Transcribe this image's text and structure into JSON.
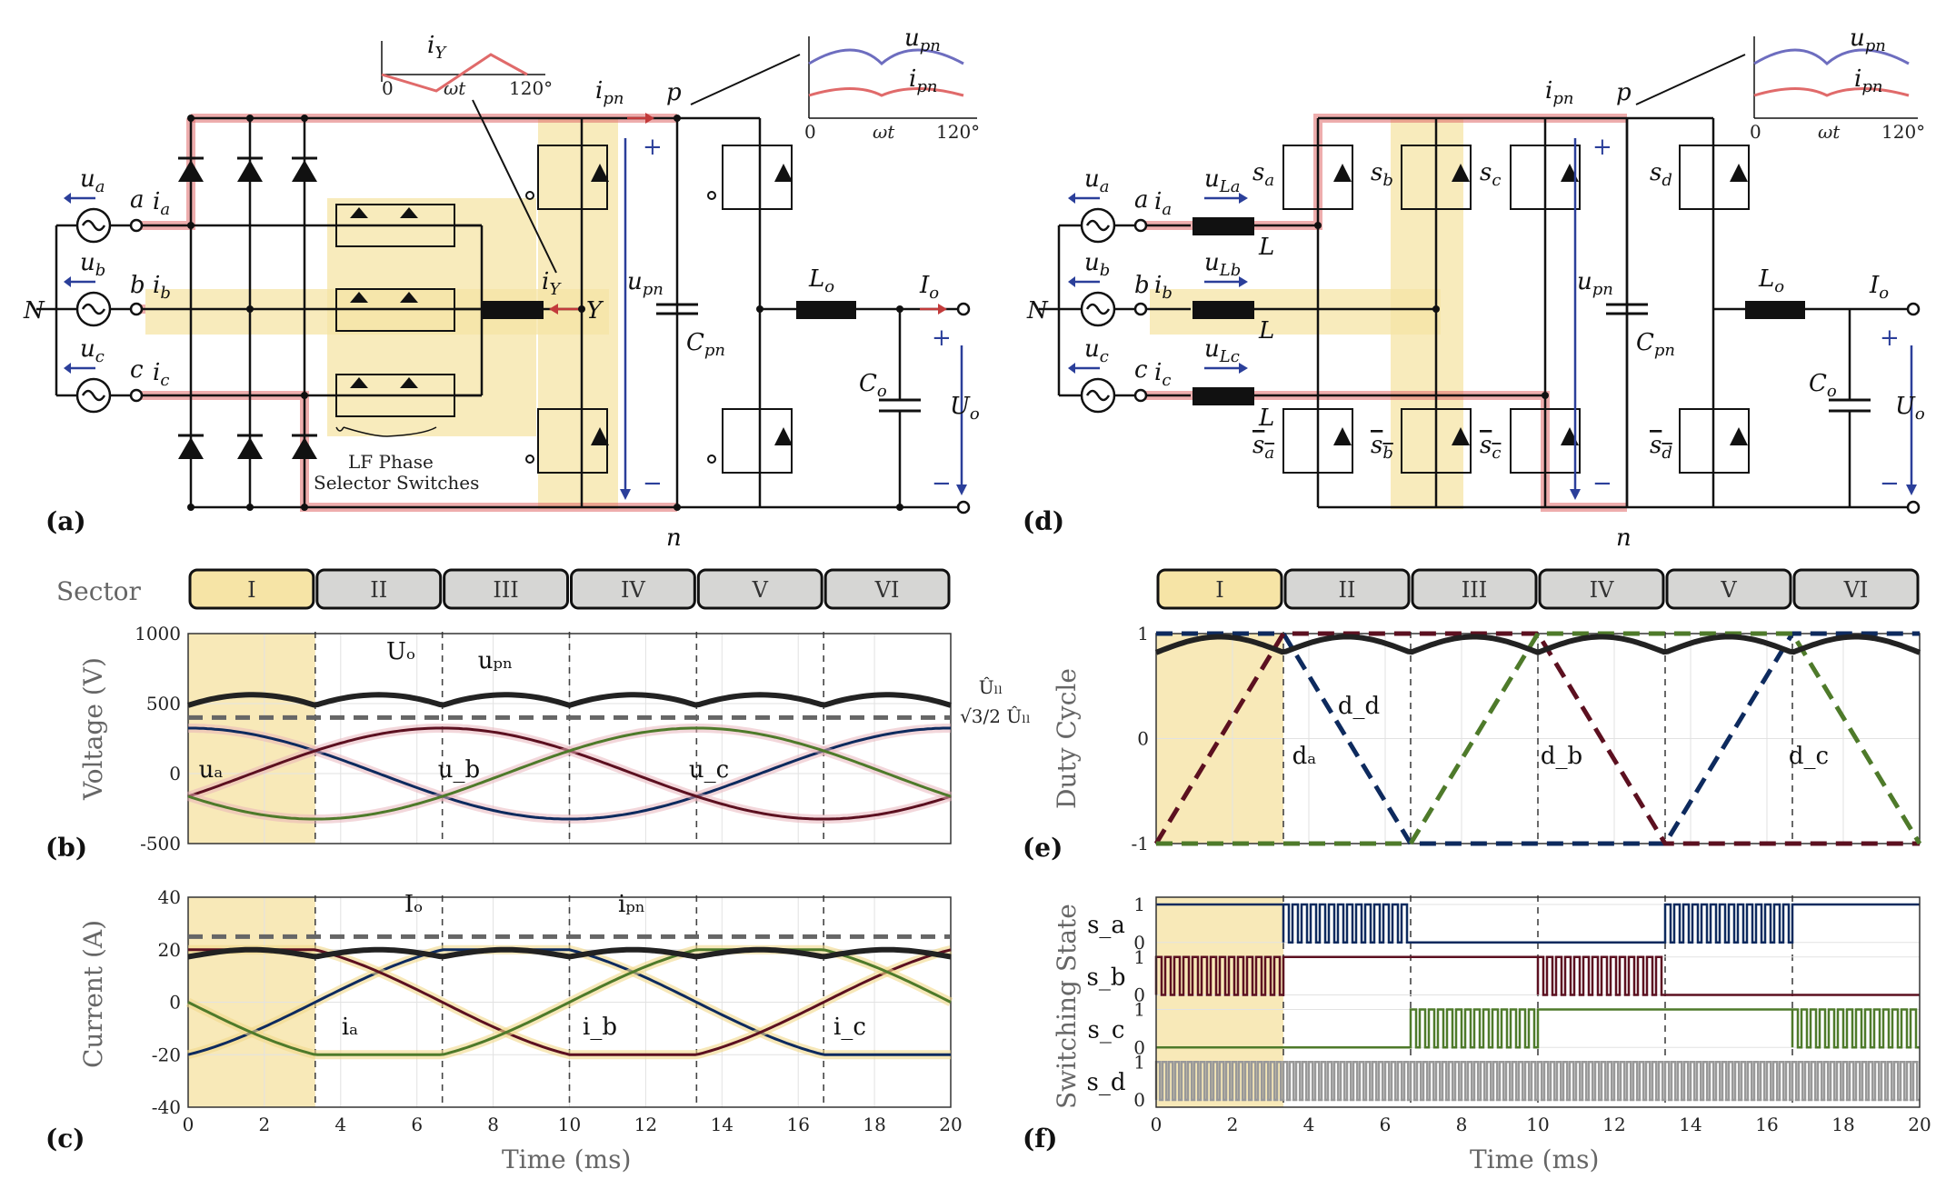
{
  "panel_labels": {
    "a": "(a)",
    "b": "(b)",
    "c": "(c)",
    "d": "(d)",
    "e": "(e)",
    "f": "(f)"
  },
  "sector_title": "Sector",
  "sectors": [
    "I",
    "II",
    "III",
    "IV",
    "V",
    "VI"
  ],
  "circuit_a": {
    "nodes": {
      "N": "N",
      "a": "a",
      "b": "b",
      "c": "c",
      "p": "p",
      "n": "n",
      "Y": "Y"
    },
    "sources": [
      {
        "u": "u",
        "sub": "a"
      },
      {
        "u": "u",
        "sub": "b"
      },
      {
        "u": "u",
        "sub": "c"
      }
    ],
    "currents": [
      {
        "i": "i",
        "sub": "a"
      },
      {
        "i": "i",
        "sub": "b"
      },
      {
        "i": "i",
        "sub": "c"
      }
    ],
    "iY": {
      "main": "i",
      "sub": "Y"
    },
    "ipn": {
      "main": "i",
      "sub": "pn"
    },
    "upn": {
      "main": "u",
      "sub": "pn"
    },
    "Cpn": {
      "main": "C",
      "sub": "pn"
    },
    "Lo": {
      "main": "L",
      "sub": "o"
    },
    "Co": {
      "main": "C",
      "sub": "o"
    },
    "Io": {
      "main": "I",
      "sub": "o"
    },
    "Uo": {
      "main": "U",
      "sub": "o"
    },
    "plus": "+",
    "minus": "−",
    "selector_label_1": "LF Phase",
    "selector_label_2": "Selector Switches",
    "inset_iy": {
      "title_main": "i",
      "title_sub": "Y",
      "x0": "0",
      "x1": "ωt",
      "x2": "120°"
    },
    "inset_upn": {
      "u_main": "u",
      "u_sub": "pn",
      "i_main": "i",
      "i_sub": "pn",
      "x0": "0",
      "x1": "ωt",
      "x2": "120°"
    }
  },
  "circuit_d": {
    "inductors": [
      {
        "main": "u",
        "sub": "La",
        "L": "L"
      },
      {
        "main": "u",
        "sub": "Lb",
        "L": "L"
      },
      {
        "main": "u",
        "sub": "Lc",
        "L": "L"
      }
    ],
    "switches_top": [
      {
        "main": "s",
        "sub": "a"
      },
      {
        "main": "s",
        "sub": "b"
      },
      {
        "main": "s",
        "sub": "c"
      },
      {
        "main": "s",
        "sub": "d"
      }
    ],
    "switches_bot": [
      {
        "main": "s",
        "sub": "a"
      },
      {
        "main": "s",
        "sub": "b"
      },
      {
        "main": "s",
        "sub": "c"
      },
      {
        "main": "s",
        "sub": "d"
      }
    ]
  },
  "chart_data": [
    {
      "id": "b",
      "type": "line",
      "ylabel": "Voltage (V)",
      "xlabel": "",
      "xlim": [
        0,
        20
      ],
      "ylim": [
        -500,
        1000
      ],
      "yticks": [
        "1000",
        "500",
        "0",
        "-500"
      ],
      "xticks": [
        "0",
        "2",
        "4",
        "6",
        "8",
        "10",
        "12",
        "14",
        "16",
        "18",
        "20"
      ],
      "series": [
        {
          "name": "u_a",
          "amplitude": 325,
          "phase_deg": 0
        },
        {
          "name": "u_b",
          "amplitude": 325,
          "phase_deg": -120
        },
        {
          "name": "u_c",
          "amplitude": 325,
          "phase_deg": 120
        },
        {
          "name": "u_pn",
          "description": "six-pulse line-to-line envelope",
          "peak": 563,
          "min": 488
        },
        {
          "name": "U_o",
          "value": 400
        }
      ],
      "annotations": [
        "Uₒ",
        "uₚₙ",
        "uₐ",
        "u_b",
        "u_c",
        "Ûₗₗ",
        "√3/2 Ûₗₗ"
      ]
    },
    {
      "id": "c",
      "type": "line",
      "ylabel": "Current (A)",
      "xlabel": "Time (ms)",
      "xlim": [
        0,
        20
      ],
      "ylim": [
        -40,
        40
      ],
      "yticks": [
        "40",
        "20",
        "0",
        "-20",
        "-40"
      ],
      "xticks": [
        "0",
        "2",
        "4",
        "6",
        "8",
        "10",
        "12",
        "14",
        "16",
        "18",
        "20"
      ],
      "series": [
        {
          "name": "i_a",
          "amplitude": 20
        },
        {
          "name": "i_b",
          "amplitude": 20
        },
        {
          "name": "i_c",
          "amplitude": 20
        },
        {
          "name": "i_pn",
          "peak": 20,
          "min": 17.3
        },
        {
          "name": "I_o",
          "value": 25
        }
      ]
    },
    {
      "id": "e",
      "type": "line",
      "ylabel": "Duty Cycle",
      "xlim": [
        0,
        20
      ],
      "ylim": [
        -1,
        1
      ],
      "yticks": [
        "1",
        "0",
        "-1"
      ],
      "series": [
        {
          "name": "d_a"
        },
        {
          "name": "d_b"
        },
        {
          "name": "d_c"
        },
        {
          "name": "d_d",
          "description": "about 0.87 average"
        }
      ]
    },
    {
      "id": "f",
      "type": "line",
      "ylabel": "Switching State",
      "xlabel": "Time (ms)",
      "xlim": [
        0,
        20
      ],
      "series": [
        {
          "name": "s_a"
        },
        {
          "name": "s_b"
        },
        {
          "name": "s_c"
        },
        {
          "name": "s_d"
        }
      ],
      "yticks": [
        "1",
        "0"
      ]
    }
  ],
  "time_axis_label": "Time (ms)",
  "voltage_axis_label": "Voltage (V)",
  "current_axis_label": "Current (A)",
  "duty_axis_label": "Duty Cycle",
  "switching_axis_label": "Switching State",
  "colors": {
    "a": "#0d2a5e",
    "b": "#5c1020",
    "c": "#4e7a2a",
    "envelope": "#222222",
    "highlight": "#f6e4a6",
    "power_path": "#e06a6a",
    "s_d": "#999999"
  }
}
